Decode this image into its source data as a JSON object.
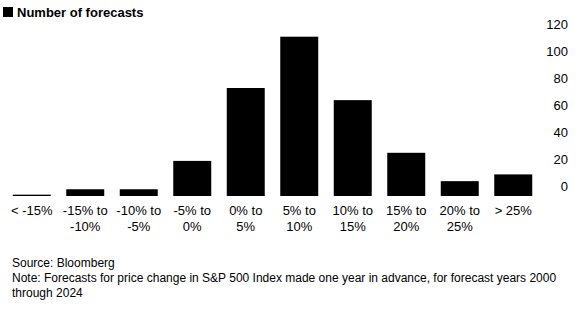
{
  "chart_data": {
    "type": "bar",
    "categories": [
      "< -15%",
      "-15% to -10%",
      "-10% to -5%",
      "-5% to 0%",
      "0% to 5%",
      "5% to 10%",
      "10% to 15%",
      "15% to 20%",
      "20% to 25%",
      "> 25%"
    ],
    "series": [
      {
        "name": "Number of forecasts",
        "color": "#000000",
        "values": [
          1,
          5,
          5,
          26,
          80,
          118,
          71,
          32,
          11,
          16
        ]
      }
    ],
    "ylim": [
      0,
      120
    ],
    "yticks": [
      0,
      20,
      40,
      60,
      80,
      100,
      120
    ],
    "grid": false,
    "legend": "top-left",
    "source": "Source: Bloomberg",
    "note": "Note: Forecasts for price change in S&P 500 Index made one year in advance, for forecast years 2000 through 2024"
  }
}
